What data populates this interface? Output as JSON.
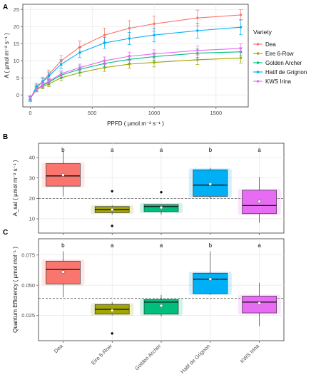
{
  "chart_data": [
    {
      "panel": "A",
      "type": "line",
      "xlabel": "PPFD ( µmol m⁻² s⁻¹ )",
      "ylabel": "A  ( µmol m⁻² s⁻¹ )",
      "xlim": [
        -60,
        1760
      ],
      "ylim": [
        -3.5,
        26.5
      ],
      "xticks": [
        0,
        500,
        1000,
        1500
      ],
      "yticks": [
        0,
        5,
        10,
        15,
        20,
        25
      ],
      "grid": true,
      "legend_title": "Variety",
      "legend_position": "right",
      "x": [
        0,
        50,
        100,
        150,
        250,
        400,
        600,
        800,
        1000,
        1350,
        1700
      ],
      "series": [
        {
          "name": "Dea",
          "color": "#F8766D",
          "values": [
            -1.0,
            2.0,
            4.0,
            6.0,
            10.0,
            14.0,
            17.5,
            19.5,
            20.8,
            22.5,
            23.4
          ],
          "err": [
            0.8,
            1.0,
            1.2,
            1.3,
            1.5,
            1.8,
            2.0,
            2.2,
            2.2,
            2.3,
            1.5
          ]
        },
        {
          "name": "Eire 6-Row",
          "color": "#A3A500",
          "values": [
            -1.0,
            1.5,
            2.5,
            3.2,
            5.0,
            6.5,
            8.0,
            9.0,
            9.5,
            10.3,
            10.8
          ],
          "err": [
            0.5,
            0.6,
            0.7,
            0.8,
            0.9,
            1.0,
            1.1,
            1.2,
            1.3,
            1.4,
            1.5
          ]
        },
        {
          "name": "Golden Archer",
          "color": "#00BF7D",
          "values": [
            -1.0,
            1.8,
            2.8,
            3.7,
            5.8,
            7.5,
            9.2,
            10.4,
            11.2,
            12.2,
            12.6
          ],
          "err": [
            0.5,
            0.6,
            0.7,
            0.8,
            0.9,
            1.0,
            1.0,
            1.1,
            1.1,
            1.2,
            1.2
          ]
        },
        {
          "name": "Hatif de Grignon",
          "color": "#00B0F6",
          "values": [
            -1.2,
            2.5,
            3.8,
            5.5,
            9.0,
            12.4,
            15.2,
            16.5,
            17.5,
            18.8,
            19.8
          ],
          "err": [
            0.7,
            0.9,
            1.0,
            1.2,
            1.3,
            1.5,
            1.6,
            1.8,
            2.0,
            2.2,
            2.2
          ]
        },
        {
          "name": "KWS Irina",
          "color": "#E76BF3",
          "values": [
            -0.8,
            1.6,
            3.0,
            4.0,
            6.2,
            8.0,
            10.0,
            11.3,
            12.0,
            13.0,
            13.6
          ],
          "err": [
            0.5,
            0.6,
            0.7,
            0.8,
            0.9,
            1.0,
            1.1,
            1.2,
            1.2,
            1.3,
            1.3
          ]
        }
      ]
    },
    {
      "panel": "B",
      "type": "box",
      "ylabel": "A_sat ( µmol m⁻² s⁻¹ )",
      "ylim": [
        3,
        47
      ],
      "yticks": [
        10,
        20,
        30,
        40
      ],
      "grid": true,
      "reference_line": 20,
      "categories": [
        "Dea",
        "Eire 6-Row",
        "Golden Archer",
        "Hatif de Grignon",
        "KWS Irina"
      ],
      "colors": [
        "#F8766D",
        "#A3A500",
        "#00BF7D",
        "#00B0F6",
        "#E76BF3"
      ],
      "letters": [
        "b",
        "a",
        "a",
        "b",
        "a"
      ],
      "boxes": [
        {
          "min": 21,
          "q1": 26,
          "median": 31,
          "q3": 37,
          "max": 43,
          "mean": 31.5,
          "outliers": []
        },
        {
          "min": 12,
          "q1": 13,
          "median": 14.5,
          "q3": 16,
          "max": 16.5,
          "mean": 14.5,
          "outliers": [
            6.5,
            23.5
          ]
        },
        {
          "min": 12,
          "q1": 13.5,
          "median": 16,
          "q3": 17,
          "max": 17,
          "mean": 15.5,
          "outliers": [
            23
          ]
        },
        {
          "min": 20,
          "q1": 21,
          "median": 26.5,
          "q3": 34,
          "max": 35,
          "mean": 27,
          "outliers": []
        },
        {
          "min": 8,
          "q1": 12.5,
          "median": 16.5,
          "q3": 24,
          "max": 30.5,
          "mean": 18.5,
          "outliers": []
        }
      ]
    },
    {
      "panel": "C",
      "type": "box",
      "ylabel": "Quantum Efficiency ( µmol mol⁻¹ )",
      "ylim": [
        0.004,
        0.0885
      ],
      "yticks": [
        0.025,
        0.05,
        0.075
      ],
      "ytick_labels": [
        "0.025",
        "0.050",
        "0.075"
      ],
      "grid": true,
      "reference_line": 0.039,
      "categories": [
        "Dea",
        "Eire 6-Row",
        "Golden Archer",
        "Hatif de Grignon",
        "KWS Irina"
      ],
      "colors": [
        "#F8766D",
        "#A3A500",
        "#00BF7D",
        "#00B0F6",
        "#E76BF3"
      ],
      "letters": [
        "b",
        "a",
        "a",
        "b",
        "a"
      ],
      "boxes": [
        {
          "min": 0.04,
          "q1": 0.051,
          "median": 0.063,
          "q3": 0.07,
          "max": 0.078,
          "mean": 0.061,
          "outliers": []
        },
        {
          "min": 0.025,
          "q1": 0.026,
          "median": 0.03,
          "q3": 0.034,
          "max": 0.036,
          "mean": 0.029,
          "outliers": [
            0.01
          ]
        },
        {
          "min": 0.024,
          "q1": 0.026,
          "median": 0.036,
          "q3": 0.038,
          "max": 0.042,
          "mean": 0.033,
          "outliers": []
        },
        {
          "min": 0.042,
          "q1": 0.043,
          "median": 0.055,
          "q3": 0.06,
          "max": 0.078,
          "mean": 0.055,
          "outliers": []
        },
        {
          "min": 0.016,
          "q1": 0.027,
          "median": 0.036,
          "q3": 0.041,
          "max": 0.052,
          "mean": 0.035,
          "outliers": []
        }
      ]
    }
  ]
}
